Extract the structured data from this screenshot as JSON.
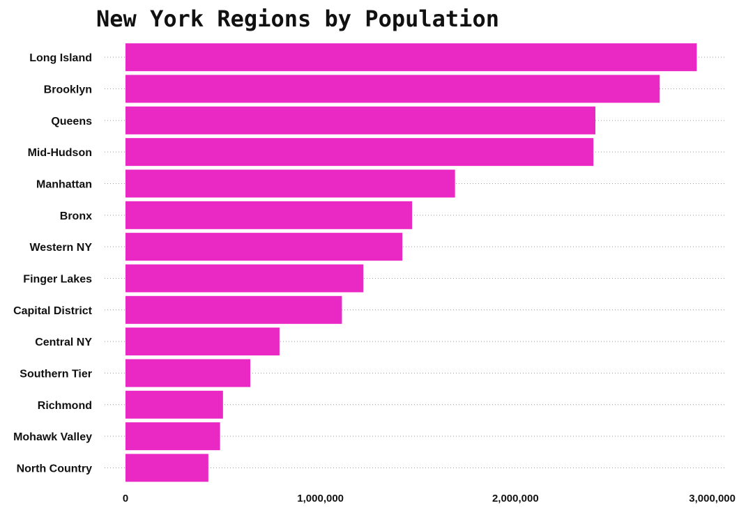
{
  "chart_data": {
    "type": "bar",
    "orientation": "horizontal",
    "title": "New York Regions by Population",
    "xlabel": "",
    "ylabel": "",
    "categories": [
      "Long Island",
      "Brooklyn",
      "Queens",
      "Mid-Hudson",
      "Manhattan",
      "Bronx",
      "Western NY",
      "Finger Lakes",
      "Capital District",
      "Central NY",
      "Southern Tier",
      "Richmond",
      "Mohawk Valley",
      "North Country"
    ],
    "values": [
      2930000,
      2740000,
      2410000,
      2400000,
      1690000,
      1470000,
      1420000,
      1220000,
      1110000,
      790000,
      640000,
      500000,
      485000,
      425000
    ],
    "xlim": [
      0,
      3000000
    ],
    "xticks": [
      0,
      1000000,
      2000000,
      3000000
    ],
    "xtick_labels": [
      "0",
      "1,000,000",
      "2,000,000",
      "3,000,000"
    ],
    "grid": "horizontal dotted",
    "bar_color": "#EA29C4"
  }
}
